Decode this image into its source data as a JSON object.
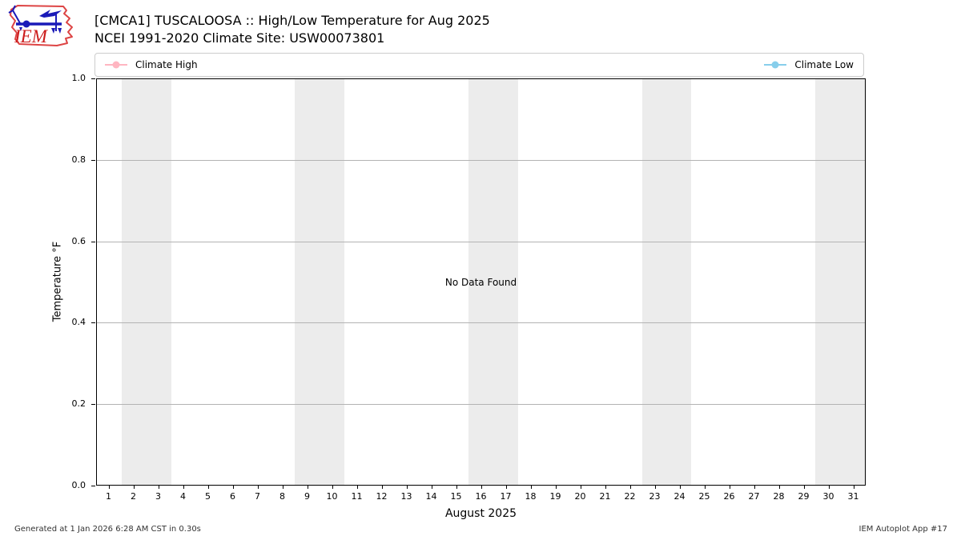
{
  "header": {
    "title_line1": "[CMCA1] TUSCALOOSA :: High/Low Temperature for Aug 2025",
    "title_line2": "NCEI 1991-2020 Climate Site: USW00073801",
    "logo_text": "IEM"
  },
  "legend": {
    "items": [
      {
        "label": "Climate High",
        "color": "#FFB6C1"
      },
      {
        "label": "Climate Low",
        "color": "#87CEEB"
      }
    ]
  },
  "chart_data": {
    "type": "line",
    "title": "[CMCA1] TUSCALOOSA :: High/Low Temperature for Aug 2025",
    "subtitle": "NCEI 1991-2020 Climate Site: USW00073801",
    "xlabel": "August 2025",
    "ylabel": "Temperature °F",
    "xlim": [
      0.5,
      31.5
    ],
    "ylim": [
      0.0,
      1.0
    ],
    "x_ticks": [
      1,
      2,
      3,
      4,
      5,
      6,
      7,
      8,
      9,
      10,
      11,
      12,
      13,
      14,
      15,
      16,
      17,
      18,
      19,
      20,
      21,
      22,
      23,
      24,
      25,
      26,
      27,
      28,
      29,
      30,
      31
    ],
    "y_ticks": [
      "0.0",
      "0.2",
      "0.4",
      "0.6",
      "0.8",
      "1.0"
    ],
    "grid": "horizontal",
    "grid_color": "#b3b3b3",
    "weekend_bands": [
      [
        1.5,
        3.5
      ],
      [
        8.5,
        10.5
      ],
      [
        15.5,
        17.5
      ],
      [
        22.5,
        24.5
      ],
      [
        29.5,
        31.5
      ]
    ],
    "weekend_band_color": "#ececec",
    "series": [
      {
        "name": "Climate High",
        "color": "#FFB6C1",
        "values": []
      },
      {
        "name": "Climate Low",
        "color": "#87CEEB",
        "values": []
      }
    ],
    "no_data_text": "No Data Found"
  },
  "footer": {
    "generated": "Generated at 1 Jan 2026 6:28 AM CST in 0.30s",
    "app": "IEM Autoplot App #17"
  }
}
